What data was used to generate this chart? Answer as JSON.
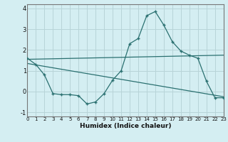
{
  "xlabel": "Humidex (Indice chaleur)",
  "background_color": "#d4eef2",
  "grid_color": "#b8d4d8",
  "line_color": "#2a7070",
  "xlim": [
    0,
    23
  ],
  "ylim": [
    -1.2,
    4.2
  ],
  "xticks": [
    0,
    1,
    2,
    3,
    4,
    5,
    6,
    7,
    8,
    9,
    10,
    11,
    12,
    13,
    14,
    15,
    16,
    17,
    18,
    19,
    20,
    21,
    22,
    23
  ],
  "yticks": [
    -1,
    0,
    1,
    2,
    3,
    4
  ],
  "curve1_x": [
    0,
    1,
    2,
    3,
    4,
    5,
    6,
    7,
    8,
    9,
    10,
    11,
    12,
    13,
    14,
    15,
    16,
    17,
    18,
    19,
    20,
    21,
    22,
    23
  ],
  "curve1_y": [
    1.6,
    1.3,
    0.8,
    -0.1,
    -0.15,
    -0.15,
    -0.2,
    -0.6,
    -0.5,
    -0.1,
    0.55,
    1.0,
    2.3,
    2.55,
    3.65,
    3.85,
    3.2,
    2.4,
    1.95,
    1.75,
    1.6,
    0.5,
    -0.3,
    -0.3
  ],
  "line2_x": [
    0,
    23
  ],
  "line2_y": [
    1.55,
    1.75
  ],
  "line3_x": [
    0,
    23
  ],
  "line3_y": [
    1.35,
    -0.25
  ]
}
